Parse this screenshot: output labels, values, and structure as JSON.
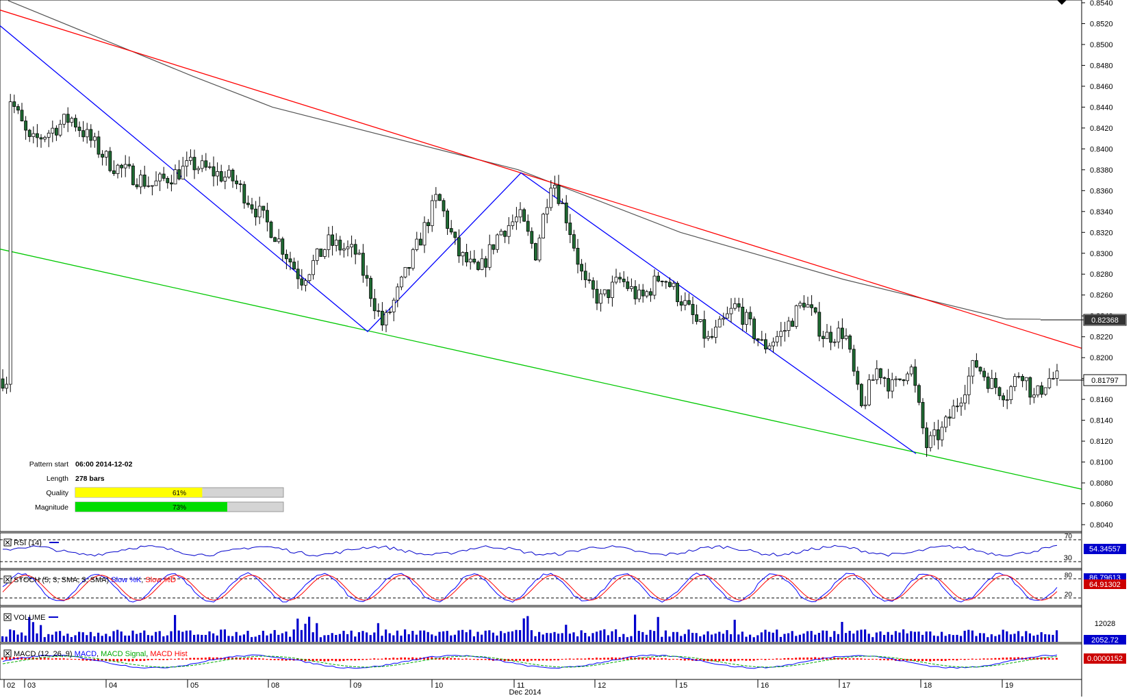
{
  "colors": {
    "up_candle": "#ffffff",
    "down_candle": "#1f6b33",
    "candle_wick": "#000000",
    "trend_zigzag": "#0000ff",
    "resistance_line": "#ff0000",
    "support_line": "#00c800",
    "moving_average": "#555555",
    "rsi_line": "#0000cc",
    "stoch_k": "#0000ff",
    "stoch_d": "#ff0000",
    "volume_bar": "#0000cc",
    "macd_line": "#0000ff",
    "macd_signal": "#00aa00",
    "macd_hist": "#ff0000",
    "quality_bar": "#ffff00",
    "magnitude_bar": "#00dd00",
    "value_box_bg": "#0000cc",
    "value_box_red": "#cc0000"
  },
  "pattern_info": {
    "start_label": "Pattern start",
    "start_value": "06:00 2014-12-02",
    "length_label": "Length",
    "length_value": "278 bars",
    "quality_label": "Quality",
    "quality_value": "61%",
    "quality_fraction": 0.61,
    "magnitude_label": "Magnitude",
    "magnitude_value": "73%",
    "magnitude_fraction": 0.73
  },
  "price_axis": {
    "ticks": [
      "0.8540",
      "0.8520",
      "0.8500",
      "0.8480",
      "0.8460",
      "0.8440",
      "0.8420",
      "0.8400",
      "0.8380",
      "0.8360",
      "0.8340",
      "0.8320",
      "0.8300",
      "0.8280",
      "0.8260",
      "0.8240",
      "0.8220",
      "0.8200",
      "0.8180",
      "0.8160",
      "0.8140",
      "0.8120",
      "0.8100",
      "0.8080",
      "0.8060",
      "0.8040"
    ],
    "ma_label": "0.82368",
    "price_label": "0.81797"
  },
  "indicators": {
    "rsi": {
      "title": "RSI (14)",
      "value": "54.34557",
      "level_label": "30",
      "top_label": "70"
    },
    "stoch": {
      "title_prefix": "STOCH (5, 3, SMA, 3, SMA)",
      "k_label": "Slow %K",
      "d_label": "Slow %D",
      "k_value": "86.79613",
      "d_value": "64.91302",
      "level_high": "80",
      "level_low": "20"
    },
    "volume": {
      "title": "VOLUME",
      "axis_label": "12028",
      "value": "2052.72"
    },
    "macd": {
      "title_prefix": "MACD (12, 26, 9)",
      "macd_label": "MACD",
      "signal_label": "MACD Signal",
      "hist_label": "MACD Hist",
      "value": "0.0000152"
    }
  },
  "time_axis": {
    "labels": [
      "02",
      "03",
      "04",
      "05",
      "08",
      "09",
      "10",
      "11",
      "12",
      "15",
      "16",
      "17",
      "18",
      "19"
    ],
    "month_label": "Dec 2014"
  },
  "chart_data": {
    "type": "candlestick",
    "symbol_timeframe": "hourly",
    "ylim": [
      0.803,
      0.8545
    ],
    "x_range": [
      "2014-12-02",
      "2014-12-19"
    ],
    "grid": false,
    "last_price": 0.81797,
    "moving_average_last": 0.82368,
    "pattern": "falling wedge / descending channel",
    "zigzag_points": [
      {
        "date": "2014-12-01",
        "price": 0.8518
      },
      {
        "date": "2014-12-09",
        "price": 0.8225
      },
      {
        "date": "2014-12-11",
        "price": 0.8377
      },
      {
        "date": "2014-12-18",
        "price": 0.8108
      }
    ],
    "resistance_line": [
      {
        "date": "2014-12-01",
        "price": 0.8533
      },
      {
        "date": "2014-12-19",
        "price": 0.8209
      }
    ],
    "support_line": [
      {
        "date": "2014-12-01",
        "price": 0.8304
      },
      {
        "date": "2014-12-19",
        "price": 0.8074
      }
    ],
    "close_path": [
      {
        "date": "2014-12-02",
        "price": 0.845
      },
      {
        "date": "2014-12-03",
        "price": 0.8405
      },
      {
        "date": "2014-12-03",
        "price": 0.843
      },
      {
        "date": "2014-12-04",
        "price": 0.8385
      },
      {
        "date": "2014-12-04",
        "price": 0.8365
      },
      {
        "date": "2014-12-05",
        "price": 0.8385
      },
      {
        "date": "2014-12-05",
        "price": 0.837
      },
      {
        "date": "2014-12-08",
        "price": 0.832
      },
      {
        "date": "2014-12-08",
        "price": 0.8275
      },
      {
        "date": "2014-12-08",
        "price": 0.831
      },
      {
        "date": "2014-12-09",
        "price": 0.83
      },
      {
        "date": "2014-12-09",
        "price": 0.823
      },
      {
        "date": "2014-12-09",
        "price": 0.829
      },
      {
        "date": "2014-12-10",
        "price": 0.8355
      },
      {
        "date": "2014-12-10",
        "price": 0.83
      },
      {
        "date": "2014-12-10",
        "price": 0.828
      },
      {
        "date": "2014-12-10",
        "price": 0.832
      },
      {
        "date": "2014-12-11",
        "price": 0.8335
      },
      {
        "date": "2014-12-11",
        "price": 0.83
      },
      {
        "date": "2014-12-11",
        "price": 0.8375
      },
      {
        "date": "2014-12-11",
        "price": 0.833
      },
      {
        "date": "2014-12-11",
        "price": 0.827
      },
      {
        "date": "2014-12-12",
        "price": 0.8255
      },
      {
        "date": "2014-12-12",
        "price": 0.8275
      },
      {
        "date": "2014-12-12",
        "price": 0.8255
      },
      {
        "date": "2014-12-12",
        "price": 0.828
      },
      {
        "date": "2014-12-15",
        "price": 0.8255
      },
      {
        "date": "2014-12-15",
        "price": 0.8215
      },
      {
        "date": "2014-12-15",
        "price": 0.825
      },
      {
        "date": "2014-12-16",
        "price": 0.821
      },
      {
        "date": "2014-12-16",
        "price": 0.8225
      },
      {
        "date": "2014-12-16",
        "price": 0.8255
      },
      {
        "date": "2014-12-16",
        "price": 0.822
      },
      {
        "date": "2014-12-17",
        "price": 0.8225
      },
      {
        "date": "2014-12-17",
        "price": 0.815
      },
      {
        "date": "2014-12-17",
        "price": 0.819
      },
      {
        "date": "2014-12-17",
        "price": 0.817
      },
      {
        "date": "2014-12-17",
        "price": 0.8195
      },
      {
        "date": "2014-12-18",
        "price": 0.8115
      },
      {
        "date": "2014-12-18",
        "price": 0.813
      },
      {
        "date": "2014-12-18",
        "price": 0.816
      },
      {
        "date": "2014-12-18",
        "price": 0.8195
      },
      {
        "date": "2014-12-18",
        "price": 0.8175
      },
      {
        "date": "2014-12-19",
        "price": 0.8165
      },
      {
        "date": "2014-12-19",
        "price": 0.819
      },
      {
        "date": "2014-12-19",
        "price": 0.816
      },
      {
        "date": "2014-12-19",
        "price": 0.818
      }
    ],
    "moving_average_path": [
      {
        "date": "2014-12-02",
        "price": 0.8542
      },
      {
        "date": "2014-12-05",
        "price": 0.847
      },
      {
        "date": "2014-12-08",
        "price": 0.844
      },
      {
        "date": "2014-12-10",
        "price": 0.84
      },
      {
        "date": "2014-12-11",
        "price": 0.838
      },
      {
        "date": "2014-12-15",
        "price": 0.832
      },
      {
        "date": "2014-12-17",
        "price": 0.8275
      },
      {
        "date": "2014-12-19",
        "price": 0.8237
      }
    ],
    "volume_peak": 12028
  }
}
